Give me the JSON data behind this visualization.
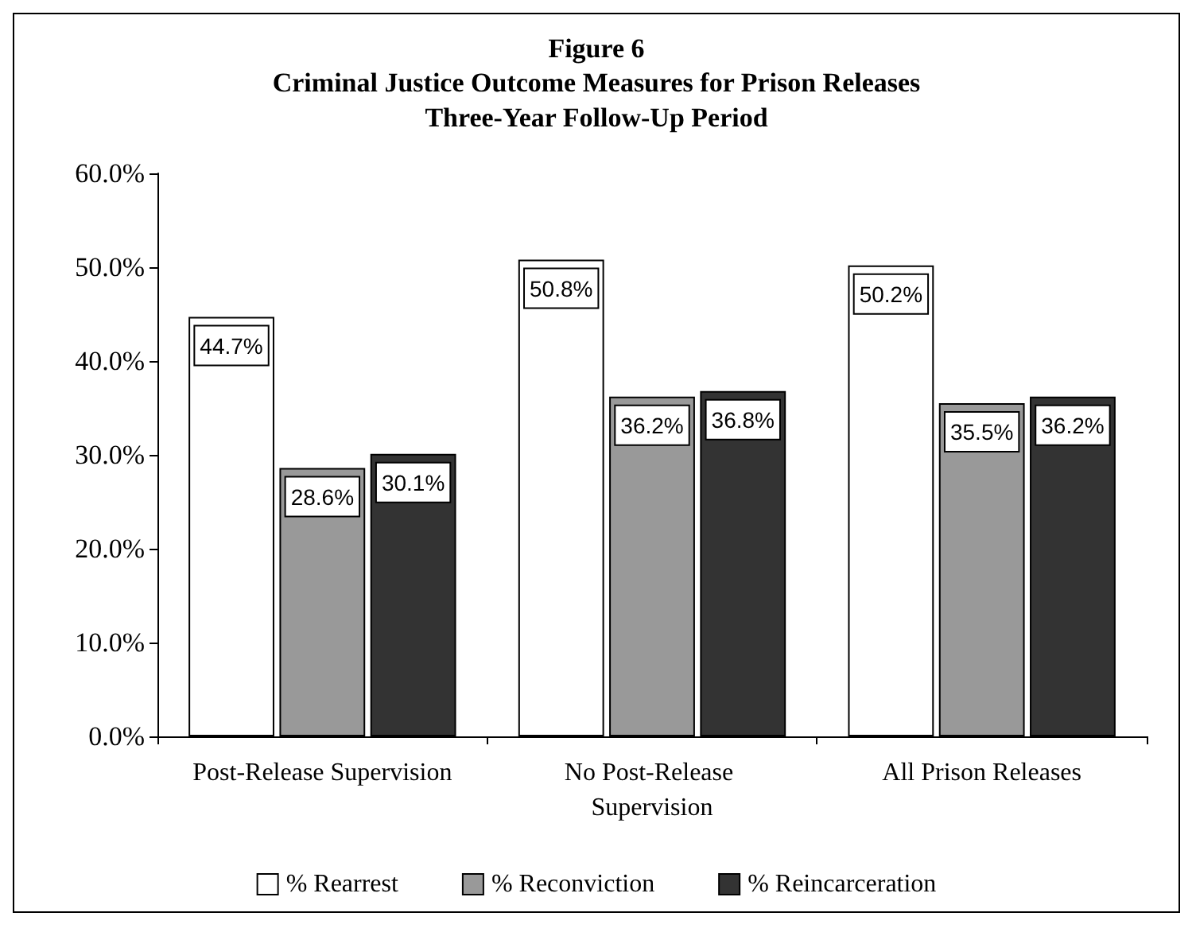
{
  "chart_data": {
    "type": "bar",
    "title": "Figure 6",
    "subtitle": "Criminal Justice Outcome Measures for Prison Releases\nThree-Year Follow-Up Period",
    "categories": [
      "Post-Release Supervision",
      "No Post-Release Supervision",
      "All Prison Releases"
    ],
    "series": [
      {
        "name": "% Rearrest",
        "color": "#ffffff",
        "values": [
          44.7,
          50.8,
          50.2
        ],
        "value_labels": [
          "44.7%",
          "50.8%",
          "50.2%"
        ]
      },
      {
        "name": "% Reconviction",
        "color": "#999999",
        "values": [
          28.6,
          36.2,
          35.5
        ],
        "value_labels": [
          "28.6%",
          "36.2%",
          "35.5%"
        ]
      },
      {
        "name": "% Reincarceration",
        "color": "#333333",
        "values": [
          30.1,
          36.8,
          36.2
        ],
        "value_labels": [
          "30.1%",
          "36.8%",
          "36.2%"
        ]
      }
    ],
    "ylim": [
      0,
      60
    ],
    "yticks": [
      {
        "value": 0,
        "label": "0.0%"
      },
      {
        "value": 10,
        "label": "10.0%"
      },
      {
        "value": 20,
        "label": "20.0%"
      },
      {
        "value": 30,
        "label": "30.0%"
      },
      {
        "value": 40,
        "label": "40.0%"
      },
      {
        "value": 50,
        "label": "50.0%"
      },
      {
        "value": 60,
        "label": "60.0%"
      }
    ],
    "legend": "bottom",
    "grid": false
  }
}
